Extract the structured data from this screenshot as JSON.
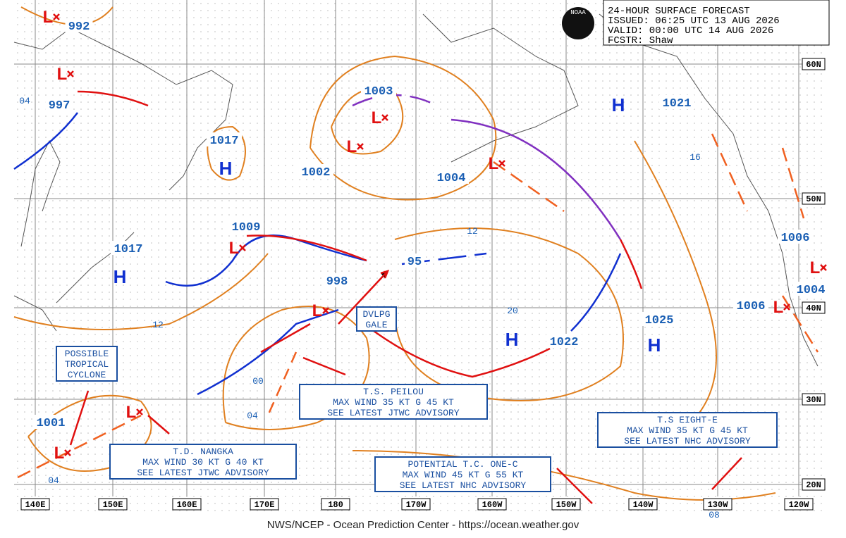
{
  "header": {
    "title": "24-HOUR SURFACE FORECAST",
    "issued": "ISSUED: 06:25 UTC 13 AUG 2026",
    "valid": "VALID:  00:00 UTC 14 AUG 2026",
    "forecaster": "FCSTR:  Shaw",
    "logo": "NOAA"
  },
  "pressure_labels": [
    "992",
    "997",
    "1017",
    "1003",
    "1002",
    "1004",
    "1021",
    "1009",
    "1017",
    "998",
    "95",
    "1022",
    "1025",
    "1006",
    "1004",
    "1006",
    "1001"
  ],
  "isobar_labels": [
    "04",
    "16",
    "12",
    "12",
    "20",
    "00",
    "04",
    "04",
    "08"
  ],
  "highs": [
    "H",
    "H",
    "H",
    "H",
    "H"
  ],
  "lows": [
    "L",
    "L",
    "L",
    "L",
    "L",
    "L",
    "L",
    "L",
    "L",
    "L",
    "L"
  ],
  "latitude_labels": [
    "60N",
    "50N",
    "40N",
    "30N",
    "20N"
  ],
  "longitude_labels": [
    "140E",
    "150E",
    "160E",
    "170E",
    "180",
    "170W",
    "160W",
    "150W",
    "140W",
    "130W",
    "120W"
  ],
  "annotations": [
    [
      "POSSIBLE",
      "TROPICAL",
      "CYCLONE"
    ],
    [
      "DVLPG",
      "GALE"
    ],
    [
      "T.S. PEILOU",
      "MAX WIND 35 KT G 45 KT",
      "SEE LATEST JTWC ADVISORY"
    ],
    [
      "T.D. NANGKA",
      "MAX WIND 30 KT G 40 KT",
      "SEE LATEST JTWC ADVISORY"
    ],
    [
      "POTENTIAL T.C. ONE-C",
      "MAX WIND 45 KT G 55 KT",
      "SEE LATEST NHC ADVISORY"
    ],
    [
      "T.S EIGHT-E",
      "MAX WIND 35 KT G 45 KT",
      "SEE LATEST NHC ADVISORY"
    ]
  ],
  "footer": "NWS/NCEP - Ocean Prediction Center - https://ocean.weather.gov"
}
